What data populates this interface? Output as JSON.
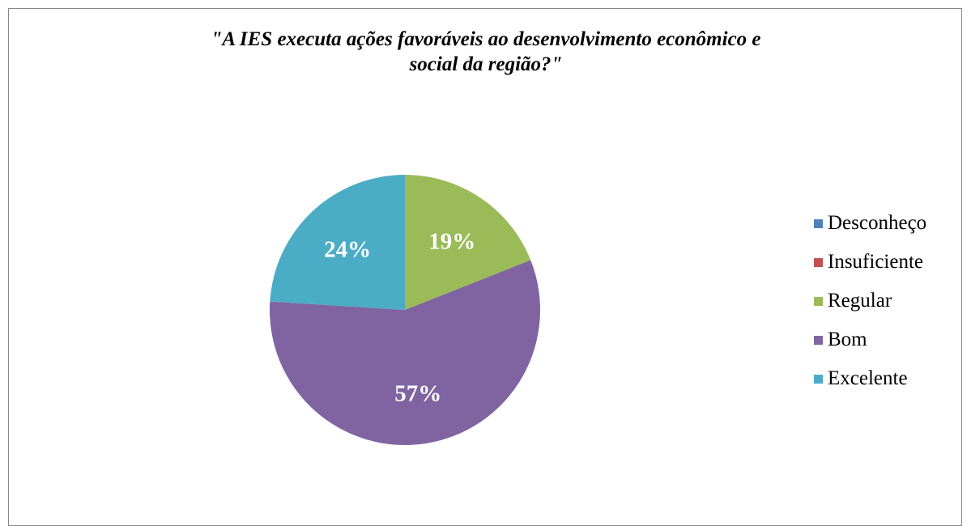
{
  "chart_data": {
    "type": "pie",
    "title": "\"A IES executa ações favoráveis ao desenvolvimento econômico e social da região?\"",
    "categories": [
      "Desconheço",
      "Insuficiente",
      "Regular",
      "Bom",
      "Excelente"
    ],
    "values": [
      0,
      0,
      19,
      57,
      24
    ],
    "labels": [
      "",
      "",
      "19%",
      "57%",
      "24%"
    ],
    "colors": [
      "#4F81BD",
      "#C0504D",
      "#9BBB59",
      "#8064A2",
      "#4BACC6"
    ],
    "legend": "right",
    "start_angle_deg": 0,
    "direction": "clockwise"
  }
}
